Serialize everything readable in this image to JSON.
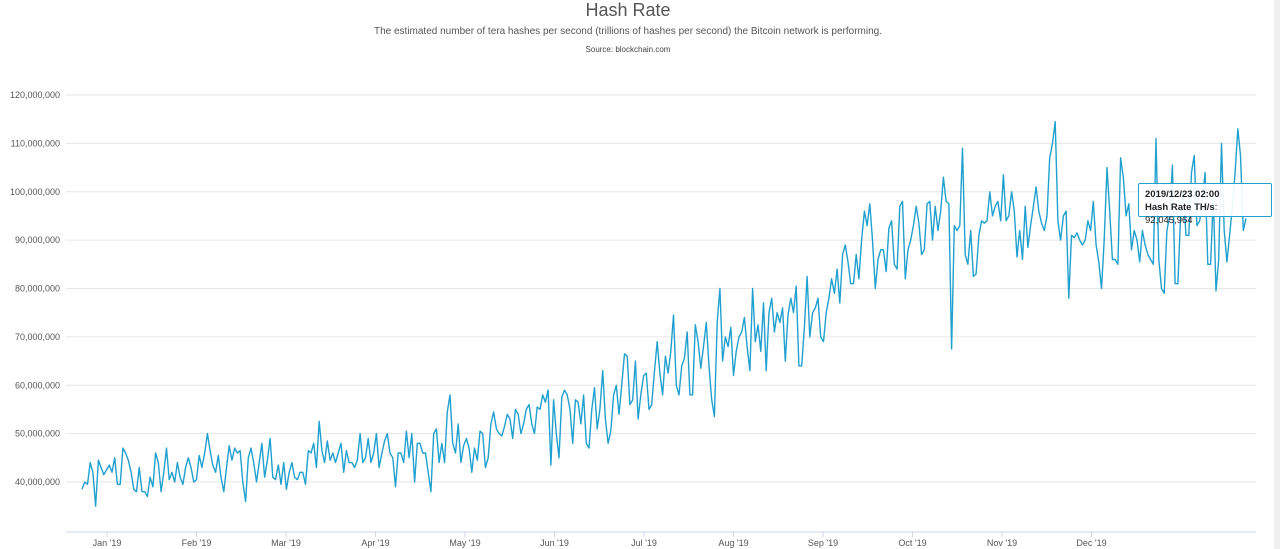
{
  "header": {
    "title": "Hash Rate",
    "subtitle": "The estimated number of tera hashes per second (trillions of hashes per second) the Bitcoin network is performing.",
    "source": "Source: blockchain.com"
  },
  "tooltip": {
    "date": "2019/12/23 02:00",
    "series_label": "Hash Rate TH/s",
    "value_text": "92,045,964"
  },
  "chart_data": {
    "type": "line",
    "title": "Hash Rate",
    "ylabel": "",
    "xlabel": "",
    "color": "#20a0cf",
    "grid": true,
    "ylim": [
      30000000,
      125000000
    ],
    "y_ticks": [
      40000000,
      50000000,
      60000000,
      70000000,
      80000000,
      90000000,
      100000000,
      110000000,
      120000000
    ],
    "y_tick_labels": [
      "40,000,000",
      "50,000,000",
      "60,000,000",
      "70,000,000",
      "80,000,000",
      "90,000,000",
      "100,000,000",
      "110,000,000",
      "120,000,000"
    ],
    "x_ticks": [
      "Jan '19",
      "Feb '19",
      "Mar '19",
      "Apr '19",
      "May '19",
      "Jun '19",
      "Jul '19",
      "Aug '19",
      "Sep '19",
      "Oct '19",
      "Nov '19",
      "Dec '19"
    ],
    "series": [
      {
        "values": [
          38.5,
          40,
          39.5,
          44,
          42,
          35,
          44.5,
          43,
          41.5,
          42.5,
          43.5,
          42,
          45,
          39.5,
          39.5,
          47,
          46,
          44.5,
          42,
          38.5,
          38,
          43,
          38,
          38,
          37,
          41,
          39,
          46,
          44,
          38,
          42,
          47,
          40.5,
          42,
          40,
          44,
          41,
          39.5,
          43,
          45,
          43,
          40,
          40.5,
          45.5,
          43,
          46,
          50,
          46.5,
          43.5,
          42,
          45.5,
          41,
          38,
          43,
          47.5,
          44.5,
          47,
          46,
          46.5,
          40,
          36,
          45,
          47,
          44,
          40,
          44,
          48,
          41,
          44.5,
          49,
          41,
          40.5,
          43.5,
          39.5,
          44,
          38.5,
          42,
          44,
          41,
          40.5,
          42,
          42,
          39.5,
          46.5,
          46,
          48,
          43,
          52.5,
          46.5,
          44,
          48.5,
          44.5,
          46,
          44,
          46,
          48,
          42,
          46.5,
          44,
          44,
          43,
          44.5,
          50,
          44,
          45,
          49,
          44,
          46,
          50,
          43,
          46,
          48.5,
          50,
          46,
          45,
          39,
          46,
          46,
          44,
          50.5,
          45,
          50,
          40,
          48,
          48,
          46,
          46,
          42,
          38,
          50,
          51,
          44,
          48,
          44,
          54.5,
          58,
          48,
          46,
          52,
          44,
          47.5,
          49,
          47,
          42,
          47,
          44.5,
          50.5,
          50,
          43,
          45,
          52,
          54.5,
          51,
          50,
          49.5,
          51.5,
          54,
          53,
          49,
          55,
          54,
          50,
          52,
          55,
          56,
          52,
          50,
          55.5,
          55,
          58,
          56.5,
          59,
          43.5,
          57,
          50,
          45,
          57.5,
          59,
          58,
          55,
          48,
          57,
          56.5,
          52,
          58,
          48,
          47,
          55,
          59.5,
          51,
          55,
          63,
          53,
          48,
          50.5,
          58,
          60,
          54,
          60,
          66.5,
          66,
          56,
          57,
          65,
          53,
          58,
          62,
          62.5,
          55,
          56,
          63,
          69,
          62.5,
          58,
          66,
          62.5,
          67,
          74.5,
          60,
          58,
          64,
          65.5,
          71,
          58,
          58,
          72.5,
          69,
          63.5,
          68,
          73,
          64,
          57,
          53.5,
          73,
          80,
          65,
          70,
          68,
          72,
          62,
          67,
          70,
          71,
          74,
          68,
          63,
          80,
          69,
          72.5,
          67,
          77,
          63,
          75,
          78,
          71,
          75,
          73,
          76,
          65,
          74.5,
          78,
          75,
          80.5,
          64,
          64,
          72,
          82.5,
          70,
          75,
          76,
          78,
          70,
          69,
          75,
          78,
          82,
          79,
          84,
          77,
          87,
          89,
          85.5,
          81,
          81,
          87,
          82,
          90,
          96,
          93,
          97.5,
          90,
          80,
          86,
          88,
          88,
          83.5,
          92.5,
          94,
          85,
          84,
          97,
          98,
          82,
          88,
          90,
          93,
          97,
          93.5,
          87,
          88,
          97.5,
          98,
          90,
          97,
          92,
          96,
          103,
          98,
          97.5,
          67.5,
          93,
          92,
          93,
          109,
          87,
          85,
          92,
          82.5,
          83,
          91,
          94,
          93.5,
          94,
          100,
          95,
          97,
          98,
          94,
          103.5,
          94,
          95,
          100,
          96,
          86.5,
          92,
          86,
          97,
          88.5,
          93,
          97,
          101,
          96,
          93.5,
          92,
          95,
          107,
          110,
          114.5,
          94,
          90,
          95,
          96,
          78,
          91,
          90.5,
          91.5,
          90,
          89,
          90,
          94,
          92,
          98,
          89,
          85.5,
          80,
          90,
          105,
          96,
          86,
          86,
          85,
          107,
          103,
          95,
          97.5,
          88,
          92,
          90,
          85.5,
          92,
          89,
          87,
          86,
          85,
          111,
          86,
          80,
          79,
          92,
          95,
          105.5,
          81,
          81,
          95,
          100,
          91,
          91,
          104,
          107.5,
          93,
          94,
          98,
          104,
          85,
          85,
          99,
          79.5,
          86,
          110,
          92,
          85.5,
          91,
          97,
          104,
          113,
          107.5,
          92,
          94.5
        ]
      }
    ],
    "value_unit_scale": 1000000,
    "x_range": [
      "2019-01-01",
      "2019-12-31"
    ]
  }
}
